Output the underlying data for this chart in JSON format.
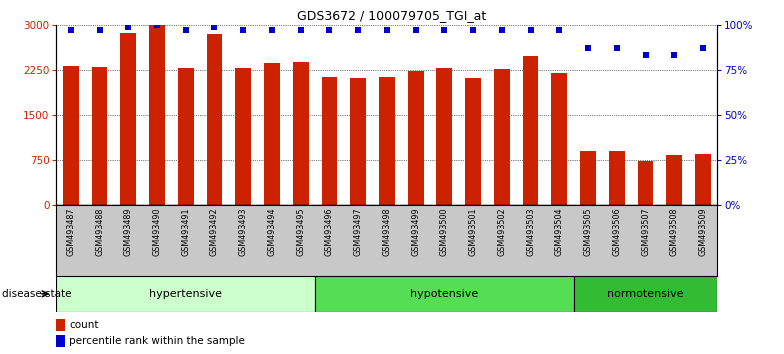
{
  "title": "GDS3672 / 100079705_TGI_at",
  "samples": [
    "GSM493487",
    "GSM493488",
    "GSM493489",
    "GSM493490",
    "GSM493491",
    "GSM493492",
    "GSM493493",
    "GSM493494",
    "GSM493495",
    "GSM493496",
    "GSM493497",
    "GSM493498",
    "GSM493499",
    "GSM493500",
    "GSM493501",
    "GSM493502",
    "GSM493503",
    "GSM493504",
    "GSM493505",
    "GSM493506",
    "GSM493507",
    "GSM493508",
    "GSM493509"
  ],
  "counts": [
    2310,
    2300,
    2870,
    3000,
    2280,
    2840,
    2290,
    2370,
    2380,
    2130,
    2120,
    2130,
    2230,
    2290,
    2120,
    2260,
    2480,
    2200,
    900,
    900,
    730,
    840,
    850
  ],
  "percentile_ranks": [
    97,
    97,
    99,
    100,
    97,
    99,
    97,
    97,
    97,
    97,
    97,
    97,
    97,
    97,
    97,
    97,
    97,
    97,
    87,
    87,
    83,
    83,
    87
  ],
  "bar_color": "#cc2200",
  "dot_color": "#0000cc",
  "groups": [
    {
      "label": "hypertensive",
      "start": 0,
      "end": 9,
      "color": "#ccffcc"
    },
    {
      "label": "hypotensive",
      "start": 9,
      "end": 18,
      "color": "#55dd55"
    },
    {
      "label": "normotensive",
      "start": 18,
      "end": 23,
      "color": "#33bb33"
    }
  ],
  "ylim_left": [
    0,
    3000
  ],
  "ylim_right": [
    0,
    100
  ],
  "yticks_left": [
    0,
    750,
    1500,
    2250,
    3000
  ],
  "yticks_right": [
    0,
    25,
    50,
    75,
    100
  ],
  "legend_count_label": "count",
  "legend_pct_label": "percentile rank within the sample",
  "disease_state_label": "disease state"
}
